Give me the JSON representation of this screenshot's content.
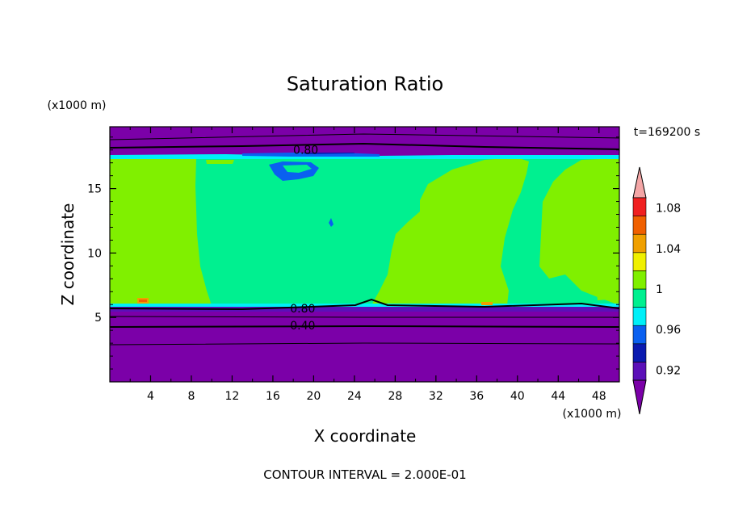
{
  "chart_data": {
    "type": "heatmap",
    "title": "Saturation Ratio",
    "xlabel": "X coordinate",
    "ylabel": "Z coordinate",
    "x_unit": "(x1000 m)",
    "y_unit": "(x1000 m)",
    "time_label": "t=169200 s",
    "footer": "CONTOUR INTERVAL = 2.000E-01",
    "xlim": [
      0,
      50
    ],
    "ylim": [
      0,
      19.8
    ],
    "x_ticks": [
      4,
      8,
      12,
      16,
      20,
      24,
      28,
      32,
      36,
      40,
      44,
      48
    ],
    "y_ticks": [
      5,
      10,
      15
    ],
    "contour_labels": [
      {
        "text": "0.80",
        "x": 17.8,
        "z": 18.0
      },
      {
        "text": "0.80",
        "x": 17.5,
        "z": 5.7
      },
      {
        "text": "0.40",
        "x": 17.5,
        "z": 4.4
      }
    ],
    "colorbar": {
      "levels": [
        0.92,
        0.94,
        0.96,
        0.98,
        1.0,
        1.02,
        1.04,
        1.06,
        1.08,
        1.1
      ],
      "tick_labels": [
        "0.92",
        "0.96",
        "1",
        "1.04",
        "1.08"
      ],
      "tick_values": [
        0.93,
        0.97,
        1.01,
        1.05,
        1.09
      ],
      "under_color": "#7b00a8",
      "over_color": "#f4a6a6",
      "colors": [
        "#5b10b8",
        "#0a1ab0",
        "#0a60f0",
        "#00f0f8",
        "#00f090",
        "#80f000",
        "#f0f000",
        "#f0a000",
        "#f06000",
        "#f02020"
      ]
    },
    "regions": [
      {
        "value": "below 0.92",
        "x": [
          0,
          50
        ],
        "z": [
          0,
          6.1
        ]
      },
      {
        "value": "0.98-1.00",
        "x": [
          8.5,
          38
        ],
        "z": [
          6.1,
          17.5
        ]
      },
      {
        "value": "1.00-1.02",
        "x": [
          0,
          8.5
        ],
        "z": [
          6.1,
          17.5
        ]
      },
      {
        "value": "below 0.92",
        "x": [
          0,
          50
        ],
        "z": [
          17.8,
          19.8
        ]
      }
    ]
  }
}
